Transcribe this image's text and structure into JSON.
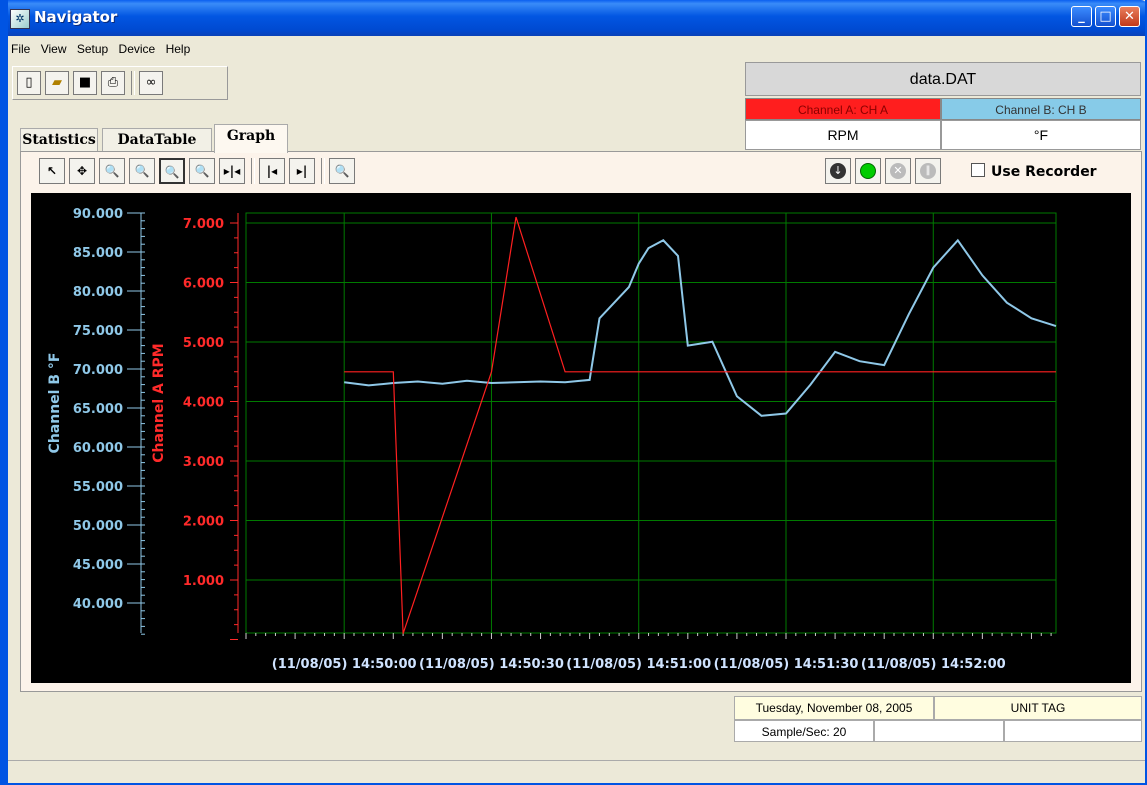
{
  "window": {
    "title": "Navigator"
  },
  "menu": [
    "File",
    "View",
    "Setup",
    "Device",
    "Help"
  ],
  "file": {
    "name": "data.DAT",
    "channel_a": "Channel A: CH A",
    "channel_b": "Channel B: CH B",
    "unit_a": "RPM",
    "unit_b": "°F"
  },
  "tabs": [
    "Statistics",
    "DataTable",
    "Graph"
  ],
  "active_tab": "Graph",
  "recorder": {
    "label": "Use Recorder",
    "checked": false
  },
  "status": {
    "date": "Tuesday, November 08, 2005",
    "unit_tag": "UNIT TAG",
    "sample_rate": "Sample/Sec: 20"
  },
  "colors": {
    "channel_a": "#ff2020",
    "channel_b": "#8fc8e8",
    "grid": "#007a00",
    "background": "#000000"
  },
  "chart_data": {
    "type": "line",
    "y_left_label": "Channel B °F",
    "y_mid_label": "Channel A RPM",
    "y_left_ticks": [
      "90.000",
      "85.000",
      "80.000",
      "75.000",
      "70.000",
      "65.000",
      "60.000",
      "55.000",
      "50.000",
      "45.000",
      "40.000"
    ],
    "y_mid_ticks": [
      "7.000",
      "6.000",
      "5.000",
      "4.000",
      "3.000",
      "2.000",
      "1.000"
    ],
    "x_ticks": [
      "(11/08/05) 14:50:00",
      "(11/08/05) 14:50:30",
      "(11/08/05) 14:51:00",
      "(11/08/05) 14:51:30",
      "(11/08/05) 14:52:00"
    ],
    "series": [
      {
        "name": "Channel B",
        "x_seconds": [
          0,
          5,
          10,
          15,
          20,
          25,
          30,
          35,
          40,
          45,
          50,
          52,
          55,
          58,
          60,
          62,
          65,
          68,
          70,
          75,
          80,
          85,
          90,
          95,
          100,
          105,
          110,
          115,
          120,
          125,
          130,
          135,
          140,
          145
        ],
        "values": [
          68.3,
          67.9,
          68.2,
          68.4,
          68.1,
          68.5,
          68.2,
          68.3,
          68.4,
          68.3,
          68.6,
          76.5,
          78.5,
          80.5,
          83.5,
          85.5,
          86.5,
          84.5,
          73.0,
          73.5,
          66.5,
          64.0,
          64.3,
          68.0,
          72.2,
          71.0,
          70.5,
          77.0,
          83.0,
          86.5,
          82.0,
          78.5,
          76.5,
          75.5
        ]
      },
      {
        "name": "Channel A",
        "x_seconds": [
          0,
          10,
          12,
          30,
          35,
          45,
          50,
          145
        ],
        "values": [
          4.5,
          4.5,
          0.1,
          4.5,
          7.1,
          4.5,
          4.5,
          4.5
        ]
      }
    ]
  }
}
